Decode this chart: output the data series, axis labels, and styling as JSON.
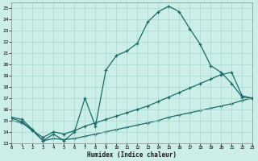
{
  "xlabel": "Humidex (Indice chaleur)",
  "xlim": [
    0,
    23
  ],
  "ylim": [
    13,
    25.5
  ],
  "yticks": [
    13,
    14,
    15,
    16,
    17,
    18,
    19,
    20,
    21,
    22,
    23,
    24,
    25
  ],
  "xticks": [
    0,
    1,
    2,
    3,
    4,
    5,
    6,
    7,
    8,
    9,
    10,
    11,
    12,
    13,
    14,
    15,
    16,
    17,
    18,
    19,
    20,
    21,
    22,
    23
  ],
  "bg_color": "#cceee8",
  "grid_color": "#aad8d0",
  "line_color": "#1a6b6b",
  "line1_x": [
    0,
    1,
    2,
    3,
    4,
    5,
    6,
    7,
    8,
    9,
    10,
    11,
    12,
    13,
    14,
    15,
    16,
    17,
    18,
    19,
    20,
    21,
    22,
    23
  ],
  "line1_y": [
    15.3,
    15.1,
    14.2,
    13.2,
    13.8,
    13.2,
    14.0,
    17.0,
    14.5,
    19.5,
    20.8,
    21.2,
    21.9,
    23.8,
    24.7,
    25.2,
    24.7,
    23.2,
    21.8,
    19.9,
    19.3,
    18.3,
    17.1,
    17.0
  ],
  "line2_x": [
    0,
    1,
    2,
    3,
    4,
    5,
    6,
    7,
    8,
    9,
    10,
    11,
    12,
    13,
    14,
    15,
    16,
    17,
    18,
    19,
    20,
    21,
    22,
    23
  ],
  "line2_y": [
    15.2,
    14.9,
    14.1,
    13.5,
    14.0,
    13.8,
    14.1,
    14.5,
    14.8,
    15.1,
    15.4,
    15.7,
    16.0,
    16.3,
    16.7,
    17.1,
    17.5,
    17.9,
    18.3,
    18.7,
    19.1,
    19.3,
    17.2,
    17.0
  ],
  "line3_x": [
    0,
    1,
    2,
    3,
    4,
    5,
    6,
    7,
    8,
    9,
    10,
    11,
    12,
    13,
    14,
    15,
    16,
    17,
    18,
    19,
    20,
    21,
    22,
    23
  ],
  "line3_y": [
    15.0,
    14.8,
    14.1,
    13.2,
    13.4,
    13.3,
    13.4,
    13.6,
    13.8,
    14.0,
    14.2,
    14.4,
    14.6,
    14.8,
    15.0,
    15.3,
    15.5,
    15.7,
    15.9,
    16.1,
    16.3,
    16.5,
    16.8,
    17.0
  ]
}
